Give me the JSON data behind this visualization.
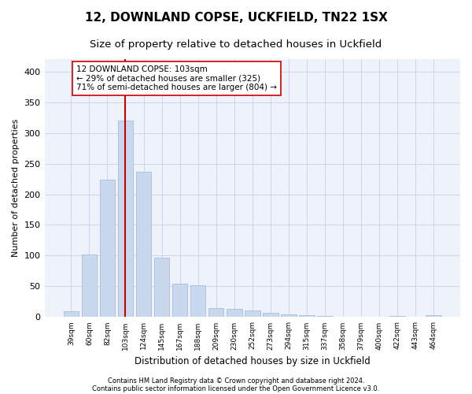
{
  "title1": "12, DOWNLAND COPSE, UCKFIELD, TN22 1SX",
  "title2": "Size of property relative to detached houses in Uckfield",
  "xlabel": "Distribution of detached houses by size in Uckfield",
  "ylabel": "Number of detached properties",
  "categories": [
    "39sqm",
    "60sqm",
    "82sqm",
    "103sqm",
    "124sqm",
    "145sqm",
    "167sqm",
    "188sqm",
    "209sqm",
    "230sqm",
    "252sqm",
    "273sqm",
    "294sqm",
    "315sqm",
    "337sqm",
    "358sqm",
    "379sqm",
    "400sqm",
    "422sqm",
    "443sqm",
    "464sqm"
  ],
  "values": [
    10,
    102,
    224,
    320,
    236,
    97,
    54,
    52,
    15,
    13,
    11,
    7,
    4,
    3,
    2,
    1,
    0,
    0,
    2,
    0,
    3
  ],
  "bar_color": "#c8d8ee",
  "bar_edge_color": "#a8bcd8",
  "vline_x_index": 3,
  "vline_color": "#cc0000",
  "annotation_text": "12 DOWNLAND COPSE: 103sqm\n← 29% of detached houses are smaller (325)\n71% of semi-detached houses are larger (804) →",
  "annotation_box_color": "#ffffff",
  "annotation_box_edge": "#cc0000",
  "ylim": [
    0,
    420
  ],
  "yticks": [
    0,
    50,
    100,
    150,
    200,
    250,
    300,
    350,
    400
  ],
  "footer1": "Contains HM Land Registry data © Crown copyright and database right 2024.",
  "footer2": "Contains public sector information licensed under the Open Government Licence v3.0.",
  "background_color": "#ffffff",
  "plot_bg_color": "#eef2fa",
  "grid_color": "#c8d0e0",
  "title_fontsize": 11,
  "subtitle_fontsize": 9.5,
  "annotation_fontsize": 7.5,
  "bar_width": 0.85
}
